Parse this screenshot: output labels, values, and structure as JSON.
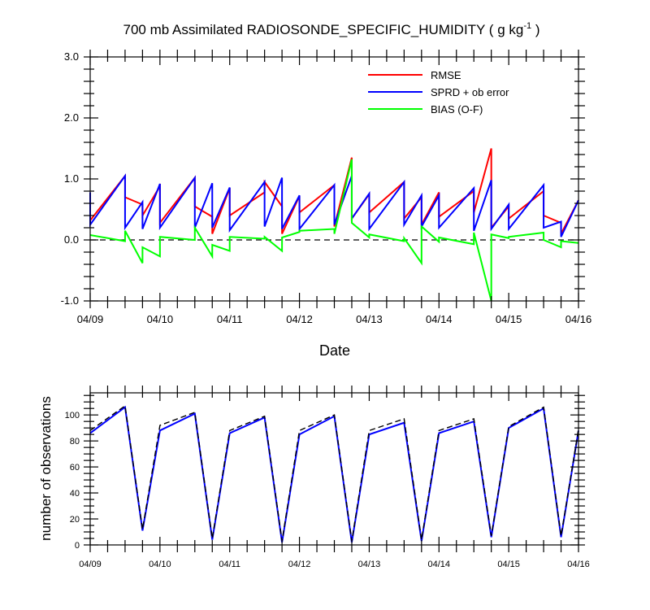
{
  "title": {
    "main": "700 mb Assimilated RADIOSONDE_SPECIFIC_HUMIDITY ( g kg",
    "exponent": "-1",
    "close": " )"
  },
  "chart_data": [
    {
      "type": "line",
      "xlabel": "Date",
      "ylabel": "",
      "ylim": [
        -1.0,
        3.0
      ],
      "yticks": [
        "-1.0",
        "0.0",
        "1.0",
        "2.0",
        "3.0"
      ],
      "xticks": [
        "04/09",
        "04/10",
        "04/11",
        "04/12",
        "04/13",
        "04/14",
        "04/15",
        "04/16"
      ],
      "xlim": [
        0,
        7
      ],
      "grid": false,
      "legend_position": "top-right",
      "zero_line": "dashed",
      "series": [
        {
          "name": "RMSE",
          "color": "#ff0000",
          "points": [
            [
              0,
              0.32
            ],
            [
              0.5,
              1.05
            ],
            [
              0.5,
              0.7
            ],
            [
              0.75,
              0.58
            ],
            [
              0.75,
              0.4
            ],
            [
              1.0,
              0.88
            ],
            [
              1.0,
              0.28
            ],
            [
              1.5,
              1.02
            ],
            [
              1.5,
              0.55
            ],
            [
              1.75,
              0.38
            ],
            [
              1.75,
              0.1
            ],
            [
              2.0,
              0.85
            ],
            [
              2.0,
              0.4
            ],
            [
              2.5,
              0.78
            ],
            [
              2.5,
              0.95
            ],
            [
              2.75,
              0.55
            ],
            [
              2.75,
              0.1
            ],
            [
              3.0,
              0.72
            ],
            [
              3.0,
              0.45
            ],
            [
              3.5,
              0.9
            ],
            [
              3.5,
              0.22
            ],
            [
              3.75,
              1.35
            ],
            [
              3.75,
              0.35
            ],
            [
              4.0,
              0.75
            ],
            [
              4.0,
              0.45
            ],
            [
              4.5,
              0.95
            ],
            [
              4.5,
              0.35
            ],
            [
              4.75,
              0.7
            ],
            [
              4.75,
              0.25
            ],
            [
              5.0,
              0.78
            ],
            [
              5.0,
              0.38
            ],
            [
              5.5,
              0.8
            ],
            [
              5.5,
              0.45
            ],
            [
              5.75,
              1.5
            ],
            [
              5.75,
              0.2
            ],
            [
              6.0,
              0.55
            ],
            [
              6.0,
              0.35
            ],
            [
              6.5,
              0.8
            ],
            [
              6.5,
              0.4
            ],
            [
              6.75,
              0.28
            ],
            [
              6.75,
              0.1
            ],
            [
              7.0,
              0.65
            ]
          ]
        },
        {
          "name": "SPRD + ob error",
          "color": "#0000ff",
          "points": [
            [
              0,
              0.78
            ],
            [
              0,
              0.25
            ],
            [
              0.5,
              1.05
            ],
            [
              0.5,
              0.2
            ],
            [
              0.75,
              0.62
            ],
            [
              0.75,
              0.18
            ],
            [
              1.0,
              0.92
            ],
            [
              1.0,
              0.2
            ],
            [
              1.5,
              1.02
            ],
            [
              1.5,
              0.2
            ],
            [
              1.75,
              0.93
            ],
            [
              1.75,
              0.2
            ],
            [
              2.0,
              0.86
            ],
            [
              2.0,
              0.16
            ],
            [
              2.5,
              0.95
            ],
            [
              2.5,
              0.22
            ],
            [
              2.75,
              1.02
            ],
            [
              2.75,
              0.18
            ],
            [
              3.0,
              0.73
            ],
            [
              3.0,
              0.18
            ],
            [
              3.5,
              0.9
            ],
            [
              3.5,
              0.25
            ],
            [
              3.75,
              1.05
            ],
            [
              3.75,
              0.35
            ],
            [
              4.0,
              0.76
            ],
            [
              4.0,
              0.18
            ],
            [
              4.5,
              0.95
            ],
            [
              4.5,
              0.25
            ],
            [
              4.75,
              0.73
            ],
            [
              4.75,
              0.22
            ],
            [
              5.0,
              0.73
            ],
            [
              5.0,
              0.2
            ],
            [
              5.5,
              0.85
            ],
            [
              5.5,
              0.15
            ],
            [
              5.75,
              0.98
            ],
            [
              5.75,
              0.18
            ],
            [
              6.0,
              0.58
            ],
            [
              6.0,
              0.18
            ],
            [
              6.5,
              0.9
            ],
            [
              6.5,
              0.2
            ],
            [
              6.75,
              0.3
            ],
            [
              6.75,
              0.05
            ],
            [
              7.0,
              0.65
            ]
          ]
        },
        {
          "name": "BIAS (O-F)",
          "color": "#00ff00",
          "points": [
            [
              0,
              0.08
            ],
            [
              0.5,
              -0.02
            ],
            [
              0.5,
              0.15
            ],
            [
              0.75,
              -0.38
            ],
            [
              0.75,
              -0.12
            ],
            [
              1.0,
              -0.27
            ],
            [
              1.0,
              0.05
            ],
            [
              1.5,
              0.0
            ],
            [
              1.5,
              0.2
            ],
            [
              1.75,
              -0.27
            ],
            [
              1.75,
              -0.08
            ],
            [
              2.0,
              -0.18
            ],
            [
              2.0,
              0.05
            ],
            [
              2.5,
              0.02
            ],
            [
              2.5,
              0.05
            ],
            [
              2.75,
              -0.18
            ],
            [
              2.75,
              0.04
            ],
            [
              3.0,
              0.13
            ],
            [
              3.0,
              0.15
            ],
            [
              3.5,
              0.18
            ],
            [
              3.5,
              0.1
            ],
            [
              3.75,
              1.32
            ],
            [
              3.75,
              0.28
            ],
            [
              4.0,
              0.04
            ],
            [
              4.0,
              0.09
            ],
            [
              4.5,
              -0.02
            ],
            [
              4.5,
              0.03
            ],
            [
              4.75,
              -0.38
            ],
            [
              4.75,
              0.22
            ],
            [
              5.0,
              -0.03
            ],
            [
              5.0,
              0.04
            ],
            [
              5.5,
              -0.07
            ],
            [
              5.5,
              0.12
            ],
            [
              5.75,
              -1.0
            ],
            [
              5.75,
              0.09
            ],
            [
              6.0,
              0.03
            ],
            [
              6.0,
              0.05
            ],
            [
              6.5,
              0.12
            ],
            [
              6.5,
              0.0
            ],
            [
              6.75,
              -0.12
            ],
            [
              6.75,
              -0.02
            ],
            [
              7.0,
              -0.05
            ]
          ]
        }
      ]
    },
    {
      "type": "line",
      "xlabel": "",
      "ylabel": "number of observations",
      "ylim": [
        0,
        117
      ],
      "yticks": [
        "0",
        "20",
        "40",
        "60",
        "80",
        "100"
      ],
      "xticks": [
        "04/09",
        "04/10",
        "04/11",
        "04/12",
        "04/13",
        "04/14",
        "04/15",
        "04/16"
      ],
      "xlim": [
        0,
        7
      ],
      "grid": false,
      "series": [
        {
          "style": "solid",
          "color": "#0000ff",
          "points": [
            [
              0,
              86
            ],
            [
              0.5,
              106
            ],
            [
              0.75,
              11
            ],
            [
              1.0,
              88
            ],
            [
              1.5,
              101
            ],
            [
              1.75,
              4
            ],
            [
              2.0,
              86
            ],
            [
              2.5,
              98
            ],
            [
              2.75,
              2
            ],
            [
              3.0,
              85
            ],
            [
              3.5,
              99
            ],
            [
              3.75,
              2
            ],
            [
              4.0,
              85
            ],
            [
              4.5,
              94
            ],
            [
              4.75,
              3
            ],
            [
              5.0,
              86
            ],
            [
              5.5,
              95
            ],
            [
              5.75,
              6
            ],
            [
              6.0,
              90
            ],
            [
              6.5,
              105
            ],
            [
              6.75,
              6
            ],
            [
              7.0,
              88
            ]
          ]
        },
        {
          "style": "dashed",
          "color": "#000000",
          "points": [
            [
              0,
              88
            ],
            [
              0.5,
              107
            ],
            [
              0.75,
              12
            ],
            [
              1.0,
              92
            ],
            [
              1.5,
              102
            ],
            [
              1.75,
              5
            ],
            [
              2.0,
              88
            ],
            [
              2.5,
              99
            ],
            [
              2.75,
              3
            ],
            [
              3.0,
              88
            ],
            [
              3.5,
              100
            ],
            [
              3.75,
              3
            ],
            [
              4.0,
              88
            ],
            [
              4.5,
              97
            ],
            [
              4.75,
              4
            ],
            [
              5.0,
              88
            ],
            [
              5.5,
              97
            ],
            [
              5.75,
              7
            ],
            [
              6.0,
              91
            ],
            [
              6.5,
              106
            ],
            [
              6.75,
              7
            ],
            [
              7.0,
              89
            ]
          ]
        }
      ]
    }
  ]
}
